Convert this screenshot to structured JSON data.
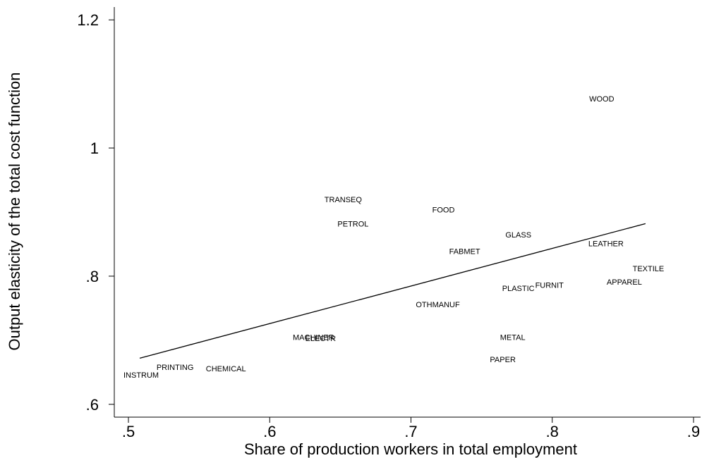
{
  "chart_data": {
    "type": "scatter",
    "title": "",
    "xlabel": "Share of production workers in total employment",
    "ylabel": "Output elasticity of the total cost function",
    "xlim": [
      0.49,
      0.905
    ],
    "ylim": [
      0.58,
      1.22
    ],
    "xticks": [
      0.5,
      0.6,
      0.7,
      0.8,
      0.9
    ],
    "xtick_labels": [
      ".5",
      ".6",
      ".7",
      ".8",
      ".9"
    ],
    "yticks": [
      0.6,
      0.8,
      1.0,
      1.2
    ],
    "ytick_labels": [
      ".6",
      ".8",
      "1",
      "1.2"
    ],
    "grid": false,
    "legend": "none",
    "markers": "labels",
    "points": [
      {
        "label": "WOOD",
        "x": 0.835,
        "y": 1.077
      },
      {
        "label": "TRANSEQ",
        "x": 0.652,
        "y": 0.92
      },
      {
        "label": "FOOD",
        "x": 0.723,
        "y": 0.904
      },
      {
        "label": "PETROL",
        "x": 0.659,
        "y": 0.882
      },
      {
        "label": "GLASS",
        "x": 0.776,
        "y": 0.865
      },
      {
        "label": "LEATHER",
        "x": 0.838,
        "y": 0.851
      },
      {
        "label": "FABMET",
        "x": 0.738,
        "y": 0.839
      },
      {
        "label": "TEXTILE",
        "x": 0.868,
        "y": 0.812
      },
      {
        "label": "APPAREL",
        "x": 0.851,
        "y": 0.791
      },
      {
        "label": "FURNIT",
        "x": 0.798,
        "y": 0.786
      },
      {
        "label": "PLASTIC",
        "x": 0.776,
        "y": 0.781
      },
      {
        "label": "OTHMANUF",
        "x": 0.719,
        "y": 0.756
      },
      {
        "label": "MACHINER",
        "x": 0.631,
        "y": 0.705
      },
      {
        "label": "ELECTR",
        "x": 0.636,
        "y": 0.703
      },
      {
        "label": "METAL",
        "x": 0.772,
        "y": 0.705
      },
      {
        "label": "PAPER",
        "x": 0.765,
        "y": 0.67
      },
      {
        "label": "PRINTING",
        "x": 0.533,
        "y": 0.658
      },
      {
        "label": "CHEMICAL",
        "x": 0.569,
        "y": 0.656
      },
      {
        "label": "INSTRUM",
        "x": 0.509,
        "y": 0.646
      }
    ],
    "fit_line": {
      "x": [
        0.508,
        0.866
      ],
      "y": [
        0.672,
        0.882
      ]
    }
  }
}
